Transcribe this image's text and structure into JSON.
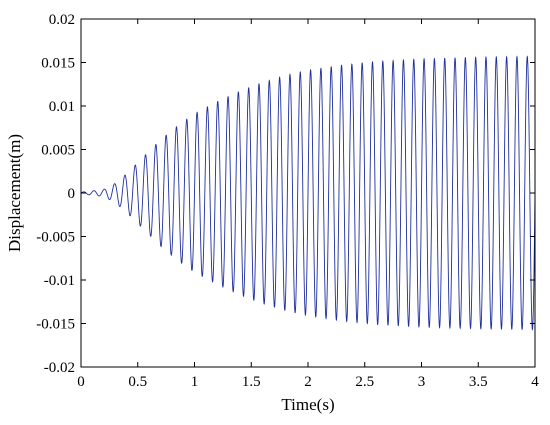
{
  "chart_data": {
    "type": "line",
    "title": "",
    "xlabel": "Time(s)",
    "ylabel": "Displacement(m)",
    "xlim": [
      0,
      4
    ],
    "ylim": [
      -0.02,
      0.02
    ],
    "x_ticks": [
      0,
      0.5,
      1,
      1.5,
      2,
      2.5,
      3,
      3.5,
      4
    ],
    "x_tick_labels": [
      "0",
      "0.5",
      "1",
      "1.5",
      "2",
      "2.5",
      "3",
      "3.5",
      "4"
    ],
    "y_ticks": [
      -0.02,
      -0.015,
      -0.01,
      -0.005,
      0,
      0.005,
      0.01,
      0.015,
      0.02
    ],
    "y_tick_labels": [
      "-0.02",
      "-0.015",
      "-0.01",
      "-0.005",
      "0",
      "0.005",
      "0.01",
      "0.015",
      "0.02"
    ],
    "grid": false,
    "legend": null,
    "line_color": "#1f2f9e",
    "signal": {
      "description_free": true,
      "frequency_hz": 11,
      "amplitude_envelope": [
        [
          0,
          0.0001
        ],
        [
          0.2,
          0.0004
        ],
        [
          0.3,
          0.0011
        ],
        [
          0.4,
          0.0022
        ],
        [
          0.5,
          0.0035
        ],
        [
          0.6,
          0.0048
        ],
        [
          0.7,
          0.0061
        ],
        [
          0.8,
          0.0072
        ],
        [
          0.9,
          0.0082
        ],
        [
          1.0,
          0.0091
        ],
        [
          1.2,
          0.0105
        ],
        [
          1.4,
          0.0117
        ],
        [
          1.6,
          0.0127
        ],
        [
          1.8,
          0.0135
        ],
        [
          2.0,
          0.0141
        ],
        [
          2.3,
          0.0147
        ],
        [
          2.6,
          0.0151
        ],
        [
          3.0,
          0.0154
        ],
        [
          3.5,
          0.0156
        ],
        [
          4.0,
          0.0157
        ]
      ]
    }
  }
}
